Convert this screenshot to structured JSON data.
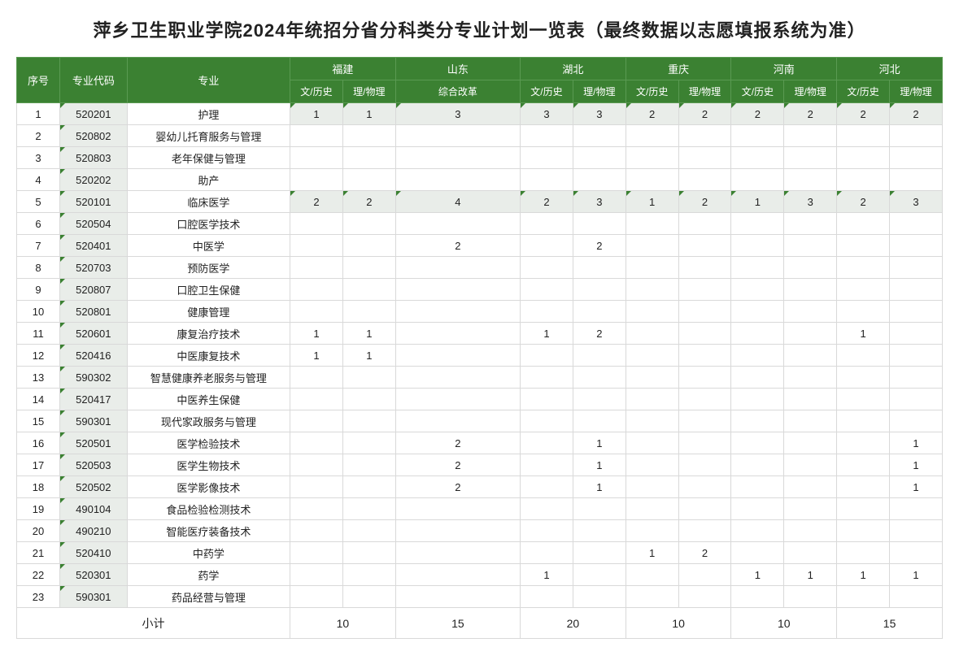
{
  "title": "萍乡卫生职业学院2024年统招分省分科类分专业计划一览表（最终数据以志愿填报系统为准）",
  "header": {
    "seq": "序号",
    "code": "专业代码",
    "major": "专业",
    "provinces": [
      "福建",
      "山东",
      "湖北",
      "重庆",
      "河南",
      "河北"
    ],
    "subcols": {
      "wenshi": "文/历史",
      "liwuli": "理/物理",
      "zonghe": "综合改革"
    }
  },
  "rows": [
    {
      "seq": "1",
      "code": "520201",
      "major": "护理",
      "fj_w": "1",
      "fj_l": "1",
      "sd": "3",
      "hb_w": "3",
      "hb_l": "3",
      "cq_w": "2",
      "cq_l": "2",
      "hn_w": "2",
      "hn_l": "2",
      "heb_w": "2",
      "heb_l": "2",
      "shade": true
    },
    {
      "seq": "2",
      "code": "520802",
      "major": "婴幼儿托育服务与管理",
      "fj_w": "",
      "fj_l": "",
      "sd": "",
      "hb_w": "",
      "hb_l": "",
      "cq_w": "",
      "cq_l": "",
      "hn_w": "",
      "hn_l": "",
      "heb_w": "",
      "heb_l": ""
    },
    {
      "seq": "3",
      "code": "520803",
      "major": "老年保健与管理",
      "fj_w": "",
      "fj_l": "",
      "sd": "",
      "hb_w": "",
      "hb_l": "",
      "cq_w": "",
      "cq_l": "",
      "hn_w": "",
      "hn_l": "",
      "heb_w": "",
      "heb_l": ""
    },
    {
      "seq": "4",
      "code": "520202",
      "major": "助产",
      "fj_w": "",
      "fj_l": "",
      "sd": "",
      "hb_w": "",
      "hb_l": "",
      "cq_w": "",
      "cq_l": "",
      "hn_w": "",
      "hn_l": "",
      "heb_w": "",
      "heb_l": ""
    },
    {
      "seq": "5",
      "code": "520101",
      "major": "临床医学",
      "fj_w": "2",
      "fj_l": "2",
      "sd": "4",
      "hb_w": "2",
      "hb_l": "3",
      "cq_w": "1",
      "cq_l": "2",
      "hn_w": "1",
      "hn_l": "3",
      "heb_w": "2",
      "heb_l": "3",
      "shade": true
    },
    {
      "seq": "6",
      "code": "520504",
      "major": "口腔医学技术",
      "fj_w": "",
      "fj_l": "",
      "sd": "",
      "hb_w": "",
      "hb_l": "",
      "cq_w": "",
      "cq_l": "",
      "hn_w": "",
      "hn_l": "",
      "heb_w": "",
      "heb_l": ""
    },
    {
      "seq": "7",
      "code": "520401",
      "major": "中医学",
      "fj_w": "",
      "fj_l": "",
      "sd": "2",
      "hb_w": "",
      "hb_l": "2",
      "cq_w": "",
      "cq_l": "",
      "hn_w": "",
      "hn_l": "",
      "heb_w": "",
      "heb_l": ""
    },
    {
      "seq": "8",
      "code": "520703",
      "major": "预防医学",
      "fj_w": "",
      "fj_l": "",
      "sd": "",
      "hb_w": "",
      "hb_l": "",
      "cq_w": "",
      "cq_l": "",
      "hn_w": "",
      "hn_l": "",
      "heb_w": "",
      "heb_l": ""
    },
    {
      "seq": "9",
      "code": "520807",
      "major": "口腔卫生保健",
      "fj_w": "",
      "fj_l": "",
      "sd": "",
      "hb_w": "",
      "hb_l": "",
      "cq_w": "",
      "cq_l": "",
      "hn_w": "",
      "hn_l": "",
      "heb_w": "",
      "heb_l": ""
    },
    {
      "seq": "10",
      "code": "520801",
      "major": "健康管理",
      "fj_w": "",
      "fj_l": "",
      "sd": "",
      "hb_w": "",
      "hb_l": "",
      "cq_w": "",
      "cq_l": "",
      "hn_w": "",
      "hn_l": "",
      "heb_w": "",
      "heb_l": ""
    },
    {
      "seq": "11",
      "code": "520601",
      "major": "康复治疗技术",
      "fj_w": "1",
      "fj_l": "1",
      "sd": "",
      "hb_w": "1",
      "hb_l": "2",
      "cq_w": "",
      "cq_l": "",
      "hn_w": "",
      "hn_l": "",
      "heb_w": "1",
      "heb_l": ""
    },
    {
      "seq": "12",
      "code": "520416",
      "major": "中医康复技术",
      "fj_w": "1",
      "fj_l": "1",
      "sd": "",
      "hb_w": "",
      "hb_l": "",
      "cq_w": "",
      "cq_l": "",
      "hn_w": "",
      "hn_l": "",
      "heb_w": "",
      "heb_l": ""
    },
    {
      "seq": "13",
      "code": "590302",
      "major": "智慧健康养老服务与管理",
      "fj_w": "",
      "fj_l": "",
      "sd": "",
      "hb_w": "",
      "hb_l": "",
      "cq_w": "",
      "cq_l": "",
      "hn_w": "",
      "hn_l": "",
      "heb_w": "",
      "heb_l": ""
    },
    {
      "seq": "14",
      "code": "520417",
      "major": "中医养生保健",
      "fj_w": "",
      "fj_l": "",
      "sd": "",
      "hb_w": "",
      "hb_l": "",
      "cq_w": "",
      "cq_l": "",
      "hn_w": "",
      "hn_l": "",
      "heb_w": "",
      "heb_l": ""
    },
    {
      "seq": "15",
      "code": "590301",
      "major": "现代家政服务与管理",
      "fj_w": "",
      "fj_l": "",
      "sd": "",
      "hb_w": "",
      "hb_l": "",
      "cq_w": "",
      "cq_l": "",
      "hn_w": "",
      "hn_l": "",
      "heb_w": "",
      "heb_l": ""
    },
    {
      "seq": "16",
      "code": "520501",
      "major": "医学检验技术",
      "fj_w": "",
      "fj_l": "",
      "sd": "2",
      "hb_w": "",
      "hb_l": "1",
      "cq_w": "",
      "cq_l": "",
      "hn_w": "",
      "hn_l": "",
      "heb_w": "",
      "heb_l": "1"
    },
    {
      "seq": "17",
      "code": "520503",
      "major": "医学生物技术",
      "fj_w": "",
      "fj_l": "",
      "sd": "2",
      "hb_w": "",
      "hb_l": "1",
      "cq_w": "",
      "cq_l": "",
      "hn_w": "",
      "hn_l": "",
      "heb_w": "",
      "heb_l": "1"
    },
    {
      "seq": "18",
      "code": "520502",
      "major": "医学影像技术",
      "fj_w": "",
      "fj_l": "",
      "sd": "2",
      "hb_w": "",
      "hb_l": "1",
      "cq_w": "",
      "cq_l": "",
      "hn_w": "",
      "hn_l": "",
      "heb_w": "",
      "heb_l": "1"
    },
    {
      "seq": "19",
      "code": "490104",
      "major": "食品检验检测技术",
      "fj_w": "",
      "fj_l": "",
      "sd": "",
      "hb_w": "",
      "hb_l": "",
      "cq_w": "",
      "cq_l": "",
      "hn_w": "",
      "hn_l": "",
      "heb_w": "",
      "heb_l": ""
    },
    {
      "seq": "20",
      "code": "490210",
      "major": "智能医疗装备技术",
      "fj_w": "",
      "fj_l": "",
      "sd": "",
      "hb_w": "",
      "hb_l": "",
      "cq_w": "",
      "cq_l": "",
      "hn_w": "",
      "hn_l": "",
      "heb_w": "",
      "heb_l": ""
    },
    {
      "seq": "21",
      "code": "520410",
      "major": "中药学",
      "fj_w": "",
      "fj_l": "",
      "sd": "",
      "hb_w": "",
      "hb_l": "",
      "cq_w": "1",
      "cq_l": "2",
      "hn_w": "",
      "hn_l": "",
      "heb_w": "",
      "heb_l": ""
    },
    {
      "seq": "22",
      "code": "520301",
      "major": "药学",
      "fj_w": "",
      "fj_l": "",
      "sd": "",
      "hb_w": "1",
      "hb_l": "",
      "cq_w": "",
      "cq_l": "",
      "hn_w": "1",
      "hn_l": "1",
      "heb_w": "1",
      "heb_l": "1"
    },
    {
      "seq": "23",
      "code": "590301",
      "major": "药品经营与管理",
      "fj_w": "",
      "fj_l": "",
      "sd": "",
      "hb_w": "",
      "hb_l": "",
      "cq_w": "",
      "cq_l": "",
      "hn_w": "",
      "hn_l": "",
      "heb_w": "",
      "heb_l": ""
    }
  ],
  "footer": {
    "label": "小计",
    "fj": "10",
    "sd": "15",
    "hb": "20",
    "cq": "10",
    "hn": "10",
    "heb": "15"
  },
  "style": {
    "header_bg": "#3b8132",
    "header_fg": "#ffffff",
    "shaded_bg": "#e9ede9",
    "border": "#d9d9d9"
  }
}
